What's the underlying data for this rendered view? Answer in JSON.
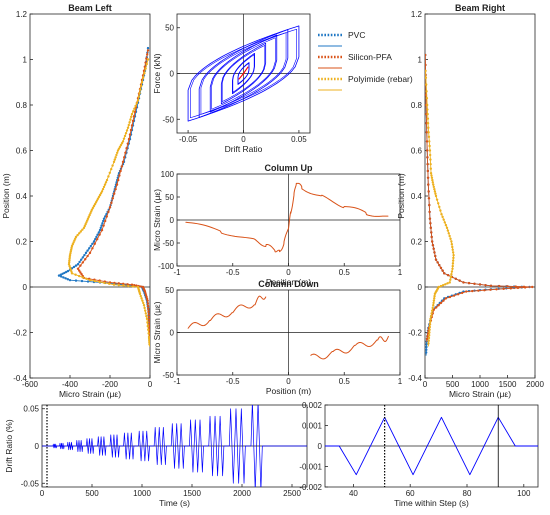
{
  "colors": {
    "pvc": "#1f77c4",
    "silicon": "#d95319",
    "polyimide": "#edb120",
    "blue": "#0000ff",
    "red": "#ff0000",
    "column": "#d95319",
    "axes": "#262626",
    "grid": "#222222"
  },
  "legend": {
    "placement": "top-right of figure",
    "entries": [
      {
        "key": "pvc_dot",
        "label": "PVC",
        "color": "#1f77c4",
        "style": "dotted"
      },
      {
        "key": "pvc_line",
        "label": "",
        "color": "#1f77c4",
        "style": "solid"
      },
      {
        "key": "silicon_dot",
        "label": "Silicon-PFA",
        "color": "#d95319",
        "style": "dotted"
      },
      {
        "key": "silicon_line",
        "label": "",
        "color": "#d95319",
        "style": "solid"
      },
      {
        "key": "poly_dot",
        "label": "Polyimide (rebar)",
        "color": "#edb120",
        "style": "dotted"
      },
      {
        "key": "poly_line",
        "label": "",
        "color": "#edb120",
        "style": "solid"
      }
    ]
  },
  "chart_data": [
    {
      "id": "beam_left",
      "type": "line",
      "title": "Beam Left",
      "xlabel": "Micro Strain (με)",
      "ylabel": "Position (m)",
      "xlim": [
        -600,
        0
      ],
      "ylim": [
        -0.4,
        1.2
      ],
      "xticks": [
        -600,
        -400,
        -200,
        0
      ],
      "yticks": [
        -0.4,
        -0.2,
        0,
        0.2,
        0.4,
        0.6,
        0.8,
        1,
        1.2
      ],
      "series": [
        {
          "name": "PVC",
          "color": "#1f77c4",
          "points": [
            [
              -10,
              1.05
            ],
            [
              -25,
              0.95
            ],
            [
              -50,
              0.85
            ],
            [
              -75,
              0.75
            ],
            [
              -100,
              0.65
            ],
            [
              -130,
              0.55
            ],
            [
              -155,
              0.5
            ],
            [
              -170,
              0.45
            ],
            [
              -185,
              0.4
            ],
            [
              -200,
              0.35
            ],
            [
              -230,
              0.3
            ],
            [
              -250,
              0.25
            ],
            [
              -280,
              0.2
            ],
            [
              -320,
              0.15
            ],
            [
              -360,
              0.1
            ],
            [
              -410,
              0.07
            ],
            [
              -455,
              0.05
            ],
            [
              -400,
              0.03
            ],
            [
              -250,
              0.02
            ],
            [
              -120,
              0.01
            ],
            [
              -40,
              0
            ],
            [
              -30,
              -0.02
            ],
            [
              -15,
              -0.06
            ],
            [
              -8,
              -0.1
            ],
            [
              -4,
              -0.16
            ],
            [
              -2,
              -0.24
            ]
          ]
        },
        {
          "name": "Silicon-PFA",
          "color": "#d95319",
          "points": [
            [
              -10,
              1.04
            ],
            [
              -30,
              0.95
            ],
            [
              -55,
              0.85
            ],
            [
              -80,
              0.75
            ],
            [
              -105,
              0.65
            ],
            [
              -135,
              0.55
            ],
            [
              -165,
              0.45
            ],
            [
              -200,
              0.35
            ],
            [
              -240,
              0.25
            ],
            [
              -300,
              0.15
            ],
            [
              -360,
              0.08
            ],
            [
              -330,
              0.04
            ],
            [
              -200,
              0.02
            ],
            [
              -90,
              0.01
            ],
            [
              -35,
              0
            ],
            [
              -25,
              -0.02
            ],
            [
              -12,
              -0.06
            ],
            [
              -6,
              -0.12
            ],
            [
              -3,
              -0.18
            ],
            [
              -2,
              -0.24
            ]
          ]
        },
        {
          "name": "Polyimide (rebar)",
          "color": "#edb120",
          "points": [
            [
              -10,
              1.0
            ],
            [
              -40,
              0.9
            ],
            [
              -60,
              0.82
            ],
            [
              -90,
              0.76
            ],
            [
              -110,
              0.7
            ],
            [
              -135,
              0.64
            ],
            [
              -160,
              0.6
            ],
            [
              -180,
              0.55
            ],
            [
              -215,
              0.47
            ],
            [
              -240,
              0.42
            ],
            [
              -265,
              0.38
            ],
            [
              -290,
              0.34
            ],
            [
              -310,
              0.3
            ],
            [
              -330,
              0.26
            ],
            [
              -370,
              0.22
            ],
            [
              -390,
              0.18
            ],
            [
              -400,
              0.14
            ],
            [
              -405,
              0.1
            ],
            [
              -390,
              0.06
            ],
            [
              -300,
              0.03
            ],
            [
              -180,
              0.01
            ],
            [
              -60,
              0
            ],
            [
              -50,
              -0.03
            ],
            [
              -30,
              -0.08
            ],
            [
              -15,
              -0.14
            ],
            [
              -5,
              -0.22
            ],
            [
              -2,
              -0.26
            ]
          ]
        }
      ]
    },
    {
      "id": "beam_right",
      "type": "line",
      "title": "Beam Right",
      "xlabel": "Micro Strain (με)",
      "ylabel": "Position (m)",
      "xlim": [
        0,
        2000
      ],
      "ylim": [
        -0.4,
        1.2
      ],
      "xticks": [
        0,
        500,
        1000,
        1500,
        2000
      ],
      "yticks": [
        -0.4,
        -0.2,
        0,
        0.2,
        0.4,
        0.6,
        0.8,
        1,
        1.2
      ],
      "series": [
        {
          "name": "PVC",
          "color": "#1f77c4",
          "points": [
            [
              5,
              1.02
            ],
            [
              20,
              0.8
            ],
            [
              40,
              0.6
            ],
            [
              60,
              0.45
            ],
            [
              90,
              0.3
            ],
            [
              130,
              0.2
            ],
            [
              200,
              0.12
            ],
            [
              350,
              0.06
            ],
            [
              700,
              0.02
            ],
            [
              1200,
              0.005
            ],
            [
              1900,
              0
            ],
            [
              1200,
              -0.01
            ],
            [
              700,
              -0.02
            ],
            [
              350,
              -0.05
            ],
            [
              150,
              -0.1
            ],
            [
              60,
              -0.18
            ],
            [
              30,
              -0.24
            ],
            [
              20,
              -0.3
            ]
          ]
        },
        {
          "name": "Silicon-PFA",
          "color": "#d95319",
          "points": [
            [
              5,
              1.02
            ],
            [
              20,
              0.8
            ],
            [
              40,
              0.6
            ],
            [
              60,
              0.45
            ],
            [
              90,
              0.3
            ],
            [
              130,
              0.2
            ],
            [
              200,
              0.12
            ],
            [
              350,
              0.06
            ],
            [
              700,
              0.02
            ],
            [
              1200,
              0.005
            ],
            [
              1950,
              0
            ],
            [
              1300,
              -0.01
            ],
            [
              750,
              -0.02
            ],
            [
              380,
              -0.05
            ],
            [
              160,
              -0.1
            ],
            [
              70,
              -0.18
            ],
            [
              30,
              -0.24
            ]
          ]
        },
        {
          "name": "Polyimide (rebar)",
          "color": "#edb120",
          "points": [
            [
              10,
              0.95
            ],
            [
              40,
              0.8
            ],
            [
              60,
              0.7
            ],
            [
              90,
              0.6
            ],
            [
              110,
              0.5
            ],
            [
              150,
              0.45
            ],
            [
              200,
              0.4
            ],
            [
              300,
              0.32
            ],
            [
              400,
              0.26
            ],
            [
              480,
              0.2
            ],
            [
              520,
              0.14
            ],
            [
              500,
              0.08
            ],
            [
              450,
              0.02
            ],
            [
              250,
              0
            ],
            [
              180,
              -0.03
            ],
            [
              150,
              -0.08
            ],
            [
              100,
              -0.14
            ],
            [
              80,
              -0.2
            ],
            [
              60,
              -0.26
            ]
          ]
        }
      ]
    },
    {
      "id": "hysteresis",
      "type": "line",
      "title": "",
      "xlabel": "Drift Ratio",
      "ylabel": "Force (kN)",
      "xlim": [
        -0.06,
        0.06
      ],
      "ylim": [
        -65,
        65
      ],
      "xticks": [
        -0.05,
        0,
        0.05
      ],
      "yticks": [
        -50,
        0,
        50
      ],
      "cycles": [
        {
          "d": 0.005,
          "f": 12
        },
        {
          "d": 0.01,
          "f": 22
        },
        {
          "d": 0.02,
          "f": 33
        },
        {
          "d": 0.03,
          "f": 42
        },
        {
          "d": 0.04,
          "f": 48
        },
        {
          "d": 0.05,
          "f": 52
        }
      ]
    },
    {
      "id": "column_up",
      "type": "line",
      "title": "Column Up",
      "xlabel": "Position (m)",
      "ylabel": "Micro Strain (με)",
      "xlim": [
        -1,
        1
      ],
      "ylim": [
        -100,
        100
      ],
      "xticks": [
        -1,
        -0.5,
        0,
        0.5,
        1
      ],
      "yticks": [
        -100,
        -50,
        0,
        50,
        100
      ],
      "series": [
        {
          "name": "",
          "color": "#d95319",
          "points": [
            [
              -0.92,
              -5
            ],
            [
              -0.6,
              -25
            ],
            [
              -0.3,
              -45
            ],
            [
              -0.2,
              -55
            ],
            [
              -0.12,
              -65
            ],
            [
              -0.08,
              -70
            ],
            [
              -0.04,
              -50
            ],
            [
              0,
              -15
            ],
            [
              0.02,
              15
            ],
            [
              0.05,
              55
            ],
            [
              0.07,
              82
            ],
            [
              0.12,
              70
            ],
            [
              0.3,
              50
            ],
            [
              0.5,
              30
            ],
            [
              0.7,
              15
            ],
            [
              0.9,
              5
            ]
          ]
        }
      ]
    },
    {
      "id": "column_down",
      "type": "line",
      "title": "Column Down",
      "xlabel": "Position (m)",
      "ylabel": "Micro Strain (με)",
      "xlim": [
        -1,
        1
      ],
      "ylim": [
        -50,
        50
      ],
      "xticks": [
        -1,
        -0.5,
        0,
        0.5,
        1
      ],
      "yticks": [
        -50,
        0,
        50
      ],
      "series": [
        {
          "name": "",
          "color": "#d95319",
          "segments": [
            [
              [
                -0.9,
                5
              ],
              [
                -0.7,
                15
              ],
              [
                -0.5,
                25
              ],
              [
                -0.3,
                35
              ],
              [
                -0.2,
                45
              ]
            ],
            [
              [
                0.2,
                -30
              ],
              [
                0.4,
                -25
              ],
              [
                0.6,
                -17
              ],
              [
                0.8,
                -10
              ],
              [
                0.9,
                -5
              ]
            ]
          ]
        }
      ]
    },
    {
      "id": "drift_time",
      "type": "line",
      "title": "",
      "xlabel": "Time (s)",
      "ylabel": "Drift Ratio (%)",
      "xlim": [
        0,
        2650
      ],
      "ylim": [
        -0.055,
        0.055
      ],
      "xticks": [
        0,
        500,
        1000,
        1500,
        2000,
        2500
      ],
      "yticks": [
        -0.05,
        0,
        0.05
      ],
      "marker_dotted_x": 50,
      "stages": [
        {
          "amp": 0.0025,
          "n": 3
        },
        {
          "amp": 0.00375,
          "n": 3
        },
        {
          "amp": 0.005,
          "n": 3
        },
        {
          "amp": 0.0075,
          "n": 3
        },
        {
          "amp": 0.01,
          "n": 3
        },
        {
          "amp": 0.0125,
          "n": 3
        },
        {
          "amp": 0.015,
          "n": 3
        },
        {
          "amp": 0.0175,
          "n": 3
        },
        {
          "amp": 0.02,
          "n": 3
        },
        {
          "amp": 0.025,
          "n": 3
        },
        {
          "amp": 0.03,
          "n": 3
        },
        {
          "amp": 0.035,
          "n": 3
        },
        {
          "amp": 0.04,
          "n": 3
        },
        {
          "amp": 0.05,
          "n": 3
        },
        {
          "amp": 0.06,
          "n": 2
        }
      ]
    },
    {
      "id": "drift_step",
      "type": "line",
      "title": "",
      "xlabel": "Time within Step (s)",
      "ylabel": "",
      "xlim": [
        30,
        105
      ],
      "ylim": [
        -0.002,
        0.002
      ],
      "xticks": [
        40,
        60,
        80,
        100
      ],
      "yticks": [
        -0.002,
        -0.001,
        0,
        0.001,
        0.002
      ],
      "ytick_labels": [
        "-0.002",
        "-0.001",
        "0",
        "0.001",
        "0.002"
      ],
      "marker_dotted_x": 51,
      "marker_solid_x": 91,
      "series": [
        {
          "name": "",
          "color": "#0000ff",
          "points": [
            [
              30,
              0
            ],
            [
              35,
              0
            ],
            [
              41,
              -0.0014
            ],
            [
              51,
              0.0014
            ],
            [
              61,
              -0.0014
            ],
            [
              71,
              0.0014
            ],
            [
              81,
              -0.0014
            ],
            [
              91,
              0.0014
            ],
            [
              97,
              0
            ],
            [
              105,
              0
            ]
          ]
        }
      ]
    }
  ]
}
